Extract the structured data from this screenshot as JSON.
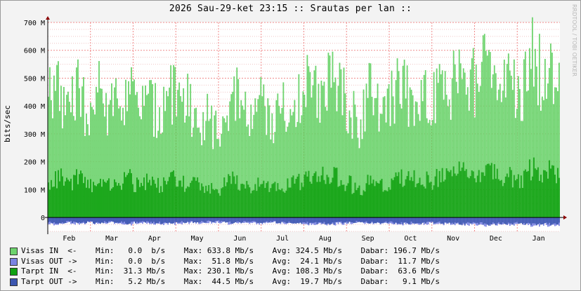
{
  "title": "2026 Sau-29-ket 23:15 :: Srautas per lan ::",
  "watermark": "RRDTOOL / TOBI OETIKER",
  "colors": {
    "visas_in": "#6dd36d",
    "visas_out": "#7b84e2",
    "tarpt_in": "#11a211",
    "tarpt_out": "#3c56b0"
  },
  "legend_rows": [
    {
      "name": "Visas IN  <-",
      "color": "#6dd36d",
      "min": "  0.0  b/s",
      "max": "633.8 Mb/s",
      "avg": "324.5 Mb/s",
      "cur": "196.7 Mb/s"
    },
    {
      "name": "Visas OUT ->",
      "color": "#7b84e2",
      "min": "  0.0  b/s",
      "max": " 51.8 Mb/s",
      "avg": " 24.1 Mb/s",
      "cur": " 11.7 Mb/s"
    },
    {
      "name": "Tarpt IN  <-",
      "color": "#11a211",
      "min": " 31.3 Mb/s",
      "max": "230.1 Mb/s",
      "avg": "108.3 Mb/s",
      "cur": " 63.6 Mb/s"
    },
    {
      "name": "Tarpt OUT ->",
      "color": "#3c56b0",
      "min": "  5.2 Mb/s",
      "max": " 44.5 Mb/s",
      "avg": " 19.7 Mb/s",
      "cur": "  9.1 Mb/s"
    }
  ],
  "legend_labels": {
    "min": "Min:",
    "max": "Max:",
    "avg": "Avg:",
    "cur": "Dabar:"
  },
  "chart_data": {
    "type": "area",
    "ylabel": "bits/sec",
    "ylim": [
      -50,
      700
    ],
    "yticks": [
      {
        "v": 0,
        "label": "0"
      },
      {
        "v": 100,
        "label": "100 M"
      },
      {
        "v": 200,
        "label": "200 M"
      },
      {
        "v": 300,
        "label": "300 M"
      },
      {
        "v": 400,
        "label": "400 M"
      },
      {
        "v": 500,
        "label": "500 M"
      },
      {
        "v": 600,
        "label": "600 M"
      },
      {
        "v": 700,
        "label": "700 M"
      }
    ],
    "months": [
      "Feb",
      "Mar",
      "Apr",
      "May",
      "Jun",
      "Jul",
      "Aug",
      "Sep",
      "Oct",
      "Nov",
      "Dec",
      "Jan"
    ],
    "grid": true,
    "series": [
      {
        "name": "Visas IN",
        "stat": {
          "min": 0.0,
          "max": 633.8,
          "avg": 324.5,
          "cur": 196.7
        },
        "values": [
          420,
          480,
          360,
          470,
          330,
          450,
          390,
          420,
          470,
          380,
          420,
          360,
          480,
          390,
          410,
          350,
          360,
          300,
          430,
          420,
          330,
          430,
          350,
          390,
          400,
          420,
          470,
          460,
          520,
          440,
          410,
          330,
          450,
          420,
          400,
          480,
          440,
          450,
          420,
          450,
          460,
          520,
          480,
          500,
          560,
          470,
          490,
          420,
          580,
          510,
          560,
          480
        ]
      },
      {
        "name": "Visas OUT",
        "stat": {
          "min": 0.0,
          "max": 51.8,
          "avg": 24.1,
          "cur": 11.7
        },
        "values": [
          -22,
          -25,
          -18,
          -24,
          -20,
          -22,
          -19,
          -21,
          -25,
          -18,
          -20,
          -22,
          -24,
          -21,
          -19,
          -20,
          -18,
          -17,
          -22,
          -20,
          -19,
          -21,
          -18,
          -20,
          -22,
          -21,
          -24,
          -23,
          -25,
          -22,
          -20,
          -18,
          -22,
          -21,
          -20,
          -24,
          -22,
          -23,
          -21,
          -22,
          -23,
          -26,
          -24,
          -25,
          -28,
          -23,
          -25,
          -21,
          -29,
          -26,
          -28,
          -24
        ]
      },
      {
        "name": "Tarpt IN",
        "stat": {
          "min": 31.3,
          "max": 230.1,
          "avg": 108.3,
          "cur": 63.6
        },
        "values": [
          110,
          150,
          120,
          140,
          110,
          130,
          120,
          120,
          140,
          110,
          130,
          110,
          150,
          120,
          130,
          110,
          110,
          100,
          130,
          130,
          100,
          130,
          110,
          120,
          120,
          130,
          150,
          140,
          160,
          140,
          120,
          100,
          140,
          130,
          120,
          150,
          130,
          140,
          130,
          140,
          140,
          160,
          150,
          150,
          170,
          140,
          150,
          130,
          180,
          160,
          170,
          150
        ]
      },
      {
        "name": "Tarpt OUT",
        "stat": {
          "min": 5.2,
          "max": 44.5,
          "avg": 19.7,
          "cur": 9.1
        },
        "values": [
          -18,
          -22,
          -15,
          -20,
          -17,
          -19,
          -16,
          -18,
          -21,
          -15,
          -17,
          -19,
          -21,
          -18,
          -16,
          -17,
          -15,
          -14,
          -19,
          -17,
          -16,
          -18,
          -15,
          -17,
          -19,
          -18,
          -21,
          -20,
          -22,
          -19,
          -17,
          -15,
          -19,
          -18,
          -17,
          -21,
          -19,
          -20,
          -18,
          -19,
          -20,
          -23,
          -21,
          -22,
          -25,
          -20,
          -22,
          -18,
          -26,
          -23,
          -25,
          -21
        ]
      }
    ]
  }
}
